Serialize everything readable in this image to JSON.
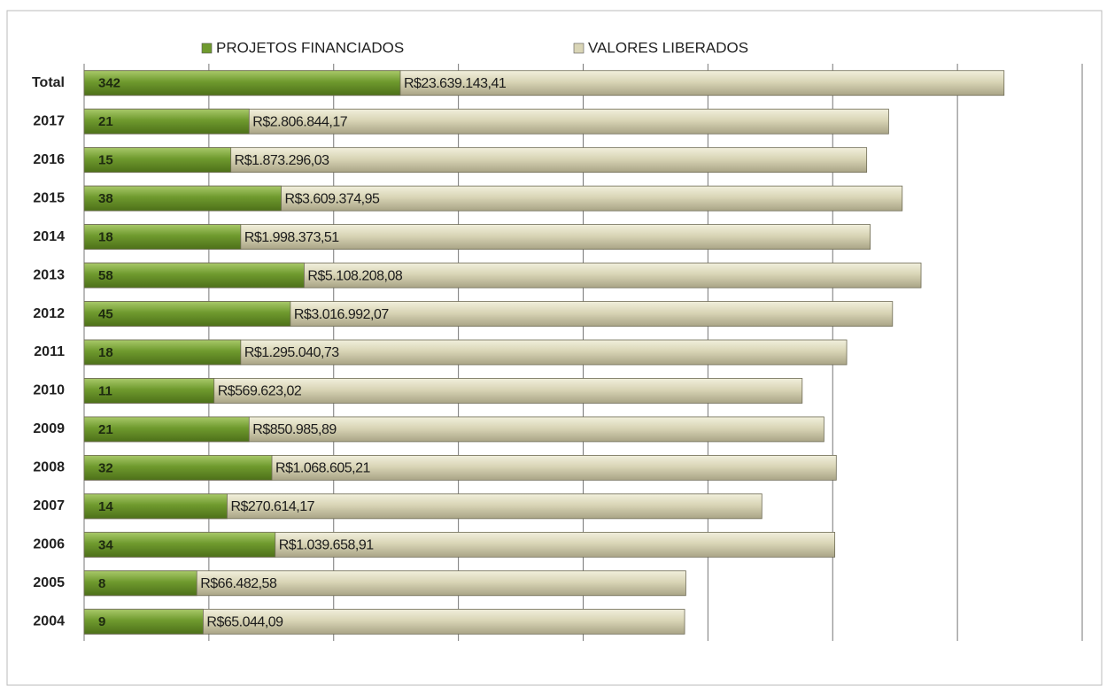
{
  "chart_data": {
    "type": "bar",
    "orientation": "horizontal",
    "log_x": true,
    "grid": true,
    "legend": "top",
    "categories": [
      "Total",
      "2017",
      "2016",
      "2015",
      "2014",
      "2013",
      "2012",
      "2011",
      "2010",
      "2009",
      "2008",
      "2007",
      "2006",
      "2005",
      "2004"
    ],
    "series": [
      {
        "name": "PROJETOS FINANCIADOS",
        "color": "#6f9a2e",
        "values": [
          342,
          21,
          15,
          38,
          18,
          58,
          45,
          18,
          11,
          21,
          32,
          14,
          34,
          8,
          9
        ]
      },
      {
        "name": "VALORES LIBERADOS",
        "color": "#d9d5b6",
        "values": [
          23639143.41,
          2806844.17,
          1873296.03,
          3609374.95,
          1998373.51,
          5108208.08,
          3016992.07,
          1295040.73,
          569623.02,
          850985.89,
          1068605.21,
          270614.17,
          1039658.91,
          66482.58,
          65044.09
        ],
        "value_labels": [
          "R$23.639.143,41",
          "R$2.806.844,17",
          "R$1.873.296,03",
          "R$3.609.374,95",
          "R$1.998.373,51",
          "R$5.108.208,08",
          "R$3.016.992,07",
          "R$1.295.040,73",
          "R$569.623,02",
          "R$850.985,89",
          "R$1.068.605,21",
          "R$270.614,17",
          "R$1.039.658,91",
          "R$66.482,58",
          "R$65.044,09"
        ]
      }
    ],
    "xlim": [
      1,
      100000000
    ],
    "xticks": [
      1,
      10,
      100,
      1000,
      10000,
      100000,
      1000000,
      10000000,
      100000000
    ]
  }
}
